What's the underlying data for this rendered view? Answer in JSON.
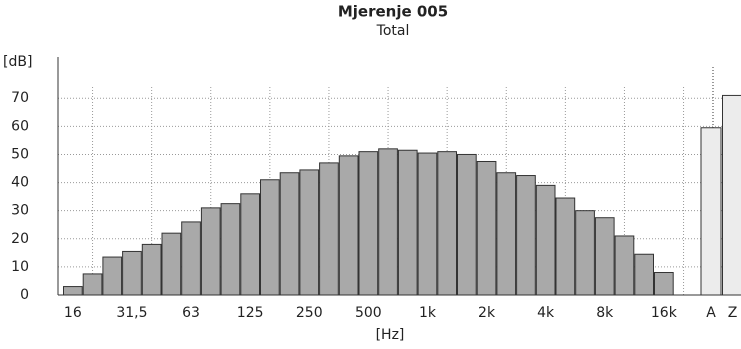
{
  "chart_data": {
    "type": "bar",
    "title": "Mjerenje 005",
    "subtitle": "Total",
    "y_label": "[dB]",
    "x_label": "[Hz]",
    "categories": [
      "16",
      null,
      null,
      "31,5",
      null,
      null,
      "63",
      null,
      null,
      "125",
      null,
      null,
      "250",
      null,
      null,
      "500",
      null,
      null,
      "1k",
      null,
      null,
      "2k",
      null,
      null,
      "4k",
      null,
      null,
      "8k",
      null,
      null,
      "16k"
    ],
    "values": [
      3,
      7.5,
      13.5,
      15.5,
      18,
      22,
      26,
      31,
      32.5,
      36,
      41,
      43.5,
      44.5,
      47,
      49.5,
      51,
      52,
      51.5,
      50.5,
      51,
      50,
      47.5,
      43.5,
      42.5,
      39,
      34.5,
      30,
      27.5,
      21,
      14.5,
      8
    ],
    "color": "#a9a9a9",
    "totals": {
      "categories": [
        "A",
        "Z"
      ],
      "values": [
        59.5,
        71
      ],
      "color": "#ececec"
    },
    "ylim": [
      0,
      74
    ],
    "yticks": [
      0,
      10,
      20,
      30,
      40,
      50,
      60,
      70
    ],
    "grid": true
  }
}
